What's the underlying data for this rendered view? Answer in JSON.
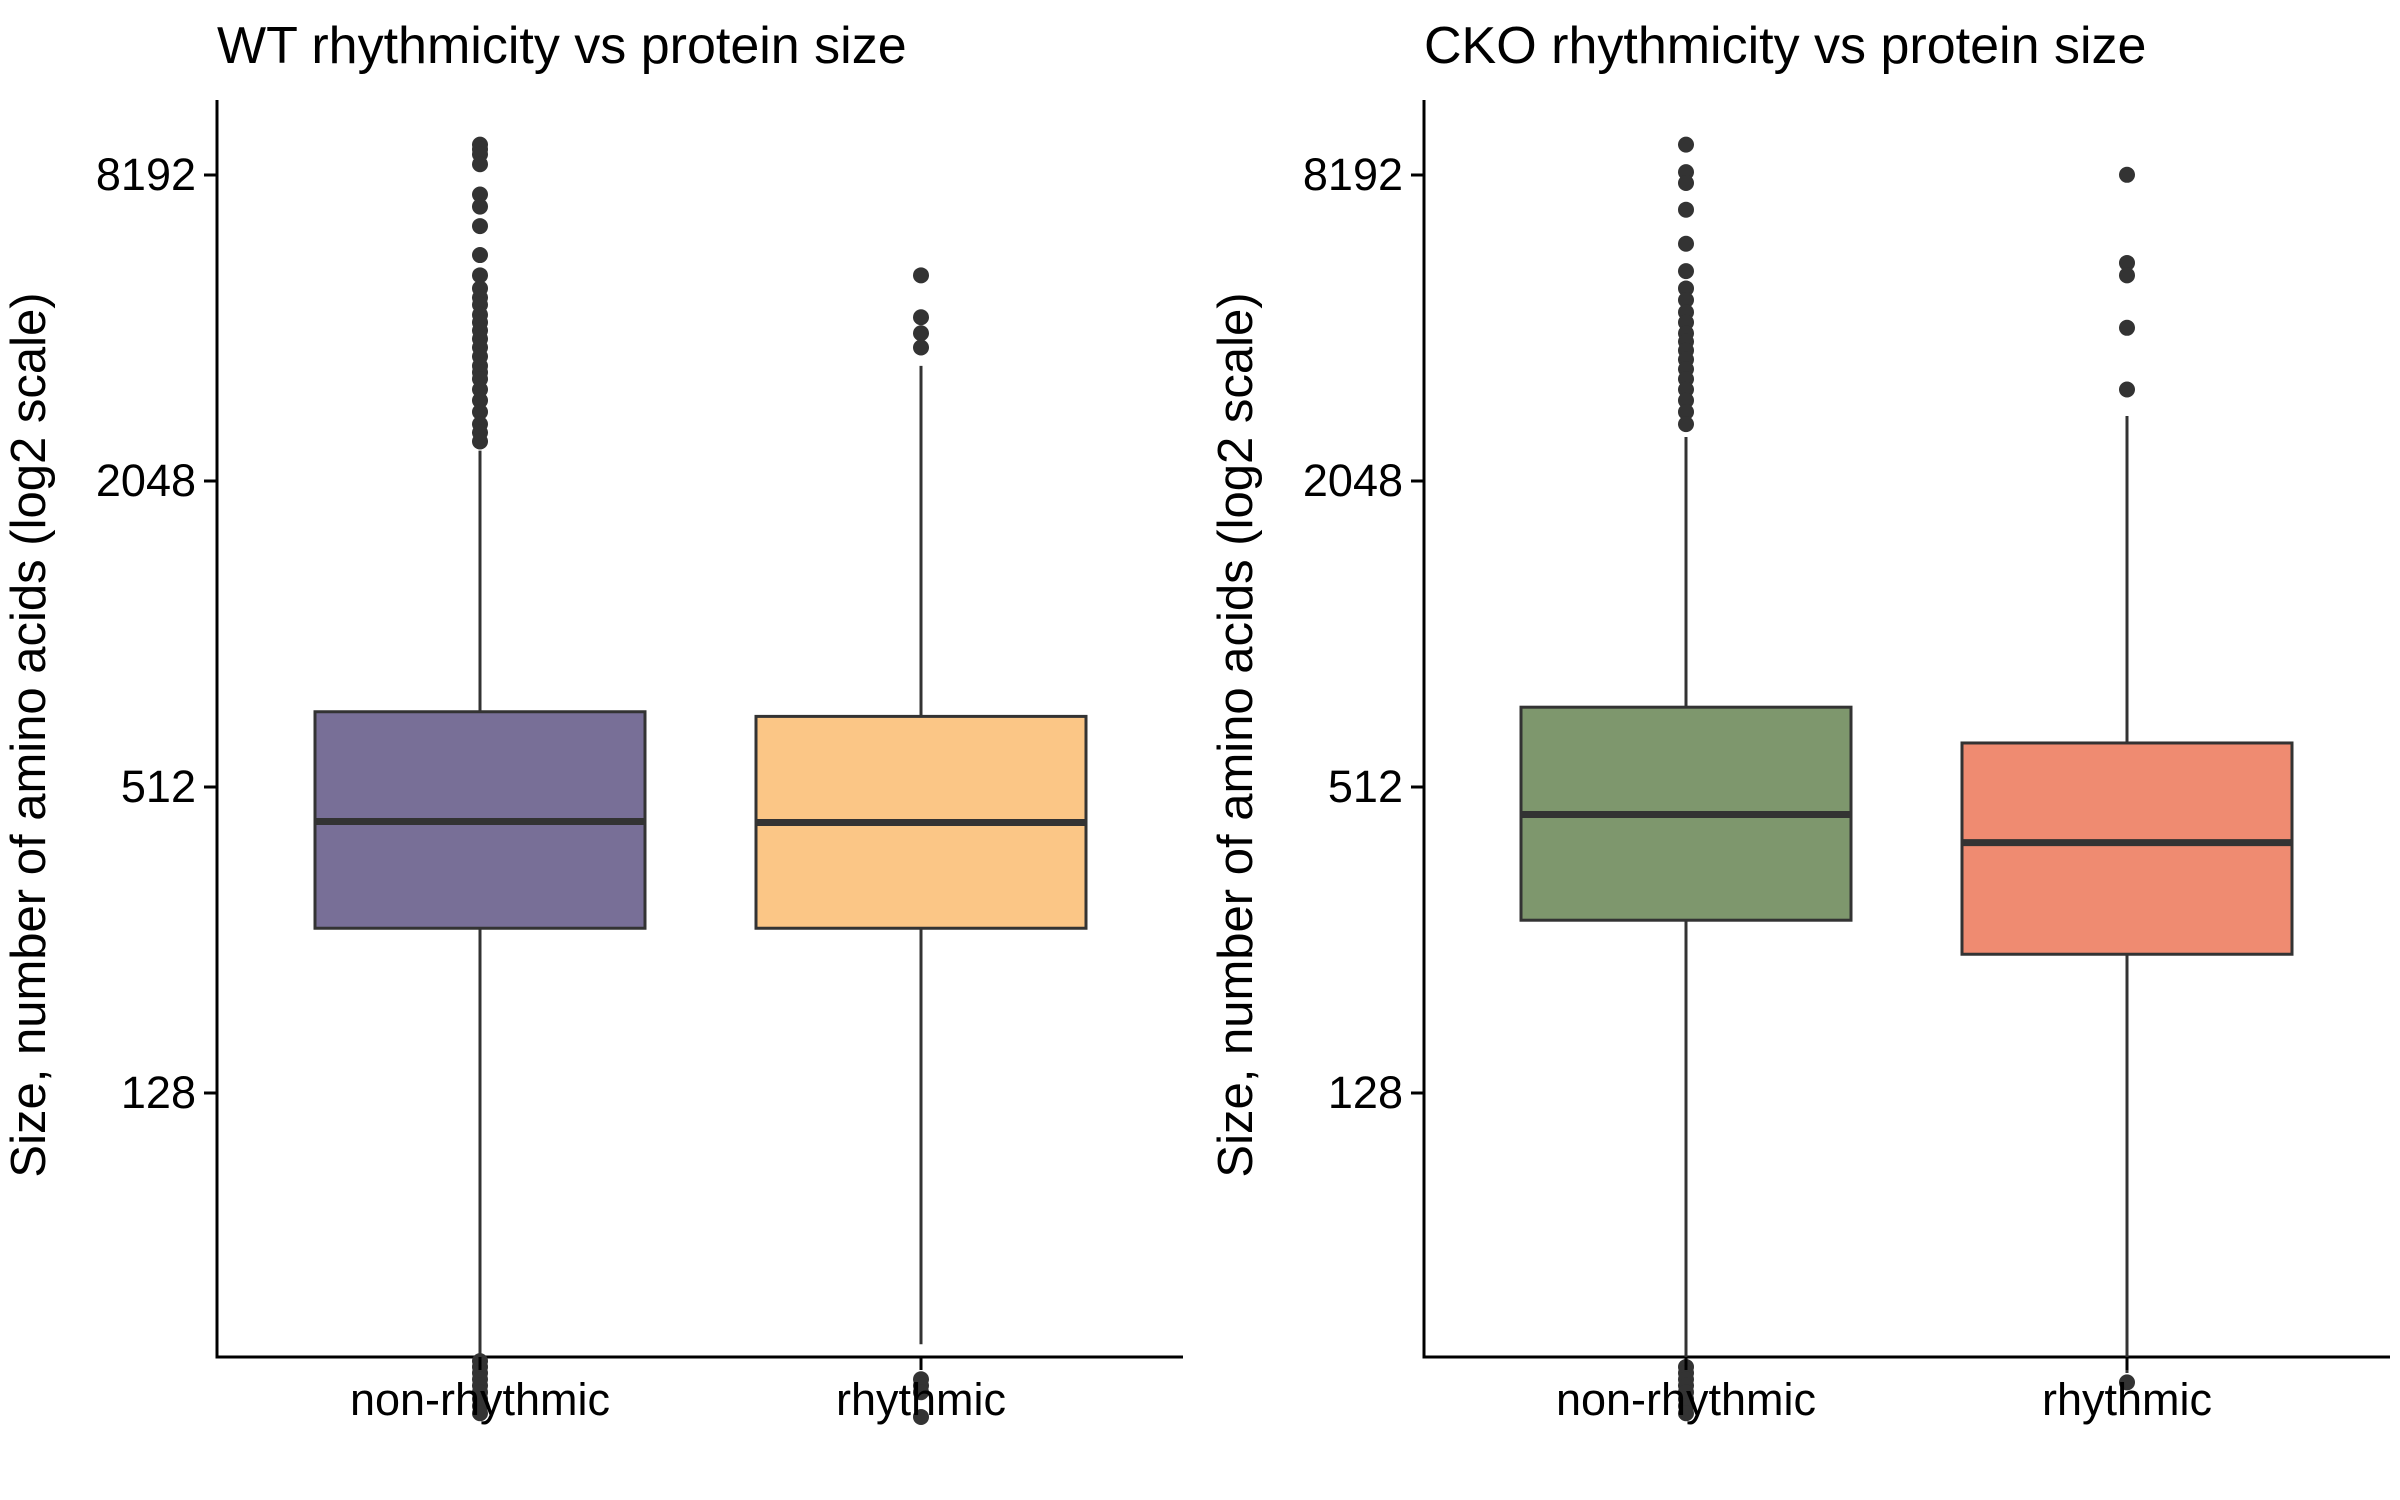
{
  "chart_data": [
    {
      "type": "box",
      "title": "WT rhythmicity vs protein size",
      "xlabel": "",
      "ylabel": "Size, number of amino acids (log2 scale)",
      "y_scale": "log2",
      "ylim": [
        29,
        11800
      ],
      "y_ticks": [
        128,
        512,
        2048,
        8192
      ],
      "y_tick_labels": [
        "128",
        "512",
        "2048",
        "8192"
      ],
      "categories": [
        "non-rhythmic",
        "rhythmic"
      ],
      "boxes": [
        {
          "category": "non-rhythmic",
          "color": "#786F97",
          "whisker_low": 39,
          "q1": 270,
          "median": 438,
          "q3": 720,
          "whisker_high": 2350,
          "outliers": [
            9400,
            9200,
            9000,
            8600,
            7500,
            7100,
            6500,
            5700,
            5200,
            4900,
            4700,
            4550,
            4350,
            4200,
            4050,
            3900,
            3750,
            3600,
            3450,
            3350,
            3250,
            3100,
            2950,
            2800,
            2650,
            2550,
            2450,
            38,
            37,
            36,
            35,
            34,
            33,
            32,
            31,
            30
          ]
        },
        {
          "category": "rhythmic",
          "color": "#FBC686",
          "whisker_low": 41,
          "q1": 270,
          "median": 436,
          "q3": 705,
          "whisker_high": 3450,
          "outliers": [
            5200,
            4300,
            4000,
            3750,
            35,
            34,
            33,
            29.5
          ]
        }
      ]
    },
    {
      "type": "box",
      "title": "CKO rhythmicity vs protein size",
      "xlabel": "",
      "ylabel": "Size, number of amino acids (log2 scale)",
      "y_scale": "log2",
      "ylim": [
        29,
        11800
      ],
      "y_ticks": [
        128,
        512,
        2048,
        8192
      ],
      "y_tick_labels": [
        "128",
        "512",
        "2048",
        "8192"
      ],
      "categories": [
        "non-rhythmic",
        "rhythmic"
      ],
      "boxes": [
        {
          "category": "non-rhythmic",
          "color": "#7E976D",
          "whisker_low": 38,
          "q1": 280,
          "median": 452,
          "q3": 735,
          "whisker_high": 2500,
          "outliers": [
            9400,
            8300,
            7900,
            7000,
            6000,
            5300,
            4900,
            4650,
            4400,
            4200,
            4000,
            3850,
            3700,
            3550,
            3400,
            3250,
            3100,
            2950,
            2800,
            2650,
            37,
            36,
            35,
            34,
            33,
            32,
            31,
            30
          ]
        },
        {
          "category": "rhythmic",
          "color": "#EF8B71",
          "whisker_low": 36,
          "q1": 240,
          "median": 398,
          "q3": 625,
          "whisker_high": 2750,
          "outliers": [
            8200,
            5500,
            5200,
            4100,
            3100,
            34.5
          ]
        }
      ]
    }
  ]
}
